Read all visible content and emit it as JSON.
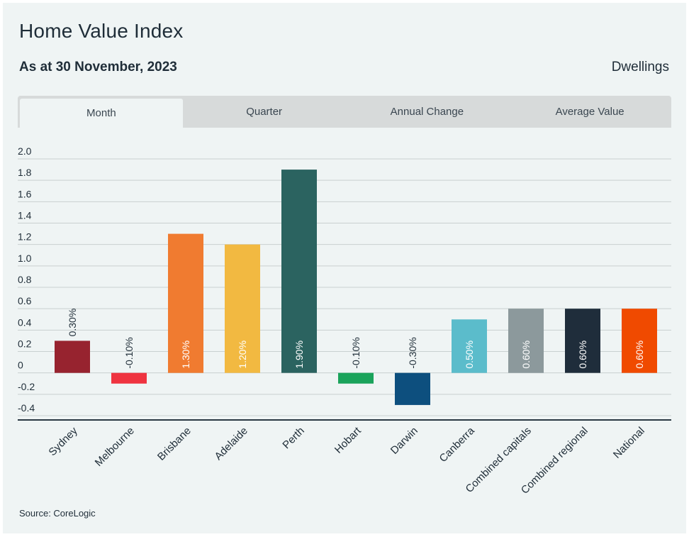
{
  "header": {
    "title": "Home Value Index",
    "subtitle": "As at 30 November, 2023",
    "right_label": "Dwellings"
  },
  "tabs": [
    {
      "label": "Month",
      "active": true
    },
    {
      "label": "Quarter",
      "active": false
    },
    {
      "label": "Annual Change",
      "active": false
    },
    {
      "label": "Average Value",
      "active": false
    }
  ],
  "footer": {
    "source": "Source: CoreLogic"
  },
  "chart_data": {
    "type": "bar",
    "title": "",
    "xlabel": "",
    "ylabel": "",
    "ylim": [
      -0.4,
      2.0
    ],
    "yticks": [
      2.0,
      1.8,
      1.6,
      1.4,
      1.2,
      1.0,
      0.8,
      0.6,
      0.4,
      0.2,
      0,
      -0.2,
      -0.4
    ],
    "ytick_labels": [
      "2.0",
      "1.8",
      "1.6",
      "1.4",
      "1.2",
      "1.0",
      "0.8",
      "0.6",
      "0.4",
      "0.2",
      "0",
      "-0.2",
      "-0.4"
    ],
    "grid": true,
    "categories": [
      "Sydney",
      "Melbourne",
      "Brisbane",
      "Adelaide",
      "Perth",
      "Hobart",
      "Darwin",
      "Canberra",
      "Combined capitals",
      "Combined regional",
      "National"
    ],
    "values": [
      0.3,
      -0.1,
      1.3,
      1.2,
      1.9,
      -0.1,
      -0.3,
      0.5,
      0.6,
      0.6,
      0.6
    ],
    "value_labels": [
      "0.30%",
      "-0.10%",
      "1.30%",
      "1.20%",
      "1.90%",
      "-0.10%",
      "-0.30%",
      "0.50%",
      "0.60%",
      "0.60%",
      "0.60%"
    ],
    "colors": [
      "#97232f",
      "#ef3340",
      "#f07b30",
      "#f2b941",
      "#2b6360",
      "#1aa35b",
      "#0d4f7e",
      "#5bbccb",
      "#8c999c",
      "#1f2d3b",
      "#f04a00"
    ]
  }
}
